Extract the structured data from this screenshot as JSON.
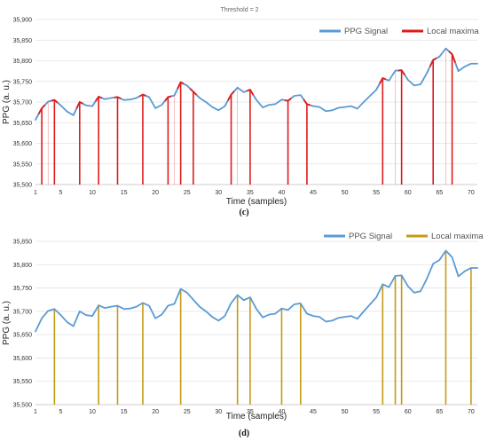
{
  "chart_data": [
    {
      "type": "line",
      "caption": "(c)",
      "annotation": "Threshold = 2",
      "xlabel": "Time (samples)",
      "ylabel": "PPG (a. u.)",
      "ylim": [
        35500,
        35900
      ],
      "xlim": [
        1,
        71
      ],
      "yticks": [
        "35,500",
        "35,550",
        "35,600",
        "35,650",
        "35,700",
        "35,750",
        "35,800",
        "35,850",
        "35,900"
      ],
      "xticks": [
        "1",
        "5",
        "10",
        "15",
        "20",
        "25",
        "30",
        "35",
        "40",
        "45",
        "50",
        "55",
        "60",
        "65",
        "70"
      ],
      "grid": true,
      "legend_position": "top-right",
      "legend": [
        "PPG Signal",
        "Local maxima"
      ],
      "series": [
        {
          "name": "PPG Signal",
          "color": "#5b9bd5",
          "x": [
            1,
            2,
            3,
            4,
            5,
            6,
            7,
            8,
            9,
            10,
            11,
            12,
            13,
            14,
            15,
            16,
            17,
            18,
            19,
            20,
            21,
            22,
            23,
            24,
            25,
            26,
            27,
            28,
            29,
            30,
            31,
            32,
            33,
            34,
            35,
            36,
            37,
            38,
            39,
            40,
            41,
            42,
            43,
            44,
            45,
            46,
            47,
            48,
            49,
            50,
            51,
            52,
            53,
            54,
            55,
            56,
            57,
            58,
            59,
            60,
            61,
            62,
            63,
            64,
            65,
            66,
            67,
            68,
            69,
            70,
            71
          ],
          "y": [
            35657,
            35685,
            35701,
            35705,
            35692,
            35677,
            35668,
            35700,
            35692,
            35690,
            35713,
            35707,
            35710,
            35712,
            35705,
            35706,
            35710,
            35718,
            35712,
            35685,
            35693,
            35712,
            35716,
            35748,
            35740,
            35725,
            35710,
            35700,
            35688,
            35680,
            35690,
            35718,
            35735,
            35724,
            35730,
            35705,
            35687,
            35693,
            35695,
            35706,
            35703,
            35715,
            35717,
            35695,
            35690,
            35688,
            35678,
            35680,
            35686,
            35688,
            35690,
            35684,
            35700,
            35715,
            35730,
            35758,
            35752,
            35776,
            35777,
            35754,
            35740,
            35743,
            35770,
            35802,
            35810,
            35830,
            35816,
            35775,
            35786,
            35793,
            35793
          ]
        },
        {
          "name": "Local maxima",
          "color": "#e01b1b",
          "x": [
            2,
            4,
            8,
            11,
            14,
            18,
            22,
            24,
            26,
            32,
            35,
            41,
            44,
            56,
            59,
            64,
            67
          ],
          "y": [
            35685,
            35705,
            35700,
            35713,
            35712,
            35718,
            35712,
            35748,
            35725,
            35718,
            35730,
            35703,
            35695,
            35758,
            35777,
            35802,
            35816
          ],
          "hinted_x": [
            3,
            23,
            33,
            58,
            66
          ],
          "hinted_y": [
            35701,
            35716,
            35735,
            35776,
            35830
          ]
        }
      ]
    },
    {
      "type": "line",
      "caption": "(d)",
      "xlabel": "Time (samples)",
      "ylabel": "PPG (a. u.)",
      "ylim": [
        35500,
        35850
      ],
      "xlim": [
        1,
        71
      ],
      "yticks": [
        "35,500",
        "35,550",
        "35,600",
        "35,650",
        "35,700",
        "35,750",
        "35,800",
        "35,850"
      ],
      "xticks": [
        "1",
        "5",
        "10",
        "15",
        "20",
        "25",
        "30",
        "35",
        "40",
        "45",
        "50",
        "55",
        "60",
        "65",
        "70"
      ],
      "grid": true,
      "legend_position": "top-right",
      "legend": [
        "PPG Signal",
        "Local maxima"
      ],
      "series": [
        {
          "name": "PPG Signal",
          "color": "#5b9bd5",
          "x": [
            1,
            2,
            3,
            4,
            5,
            6,
            7,
            8,
            9,
            10,
            11,
            12,
            13,
            14,
            15,
            16,
            17,
            18,
            19,
            20,
            21,
            22,
            23,
            24,
            25,
            26,
            27,
            28,
            29,
            30,
            31,
            32,
            33,
            34,
            35,
            36,
            37,
            38,
            39,
            40,
            41,
            42,
            43,
            44,
            45,
            46,
            47,
            48,
            49,
            50,
            51,
            52,
            53,
            54,
            55,
            56,
            57,
            58,
            59,
            60,
            61,
            62,
            63,
            64,
            65,
            66,
            67,
            68,
            69,
            70,
            71
          ],
          "y": [
            35657,
            35685,
            35701,
            35705,
            35692,
            35677,
            35668,
            35700,
            35692,
            35690,
            35713,
            35707,
            35710,
            35712,
            35705,
            35706,
            35710,
            35718,
            35712,
            35685,
            35693,
            35712,
            35716,
            35748,
            35740,
            35725,
            35710,
            35700,
            35688,
            35680,
            35690,
            35718,
            35735,
            35724,
            35730,
            35705,
            35687,
            35693,
            35695,
            35706,
            35703,
            35715,
            35717,
            35695,
            35690,
            35688,
            35678,
            35680,
            35686,
            35688,
            35690,
            35684,
            35700,
            35715,
            35730,
            35758,
            35752,
            35776,
            35777,
            35754,
            35740,
            35743,
            35770,
            35802,
            35810,
            35830,
            35816,
            35775,
            35786,
            35793,
            35793
          ]
        },
        {
          "name": "Local maxima",
          "color": "#c39b16",
          "x": [
            4,
            11,
            14,
            18,
            24,
            33,
            35,
            40,
            43,
            56,
            58,
            59,
            66,
            70
          ],
          "y": [
            35705,
            35713,
            35712,
            35718,
            35748,
            35735,
            35730,
            35706,
            35717,
            35758,
            35776,
            35777,
            35830,
            35793
          ]
        }
      ]
    }
  ]
}
